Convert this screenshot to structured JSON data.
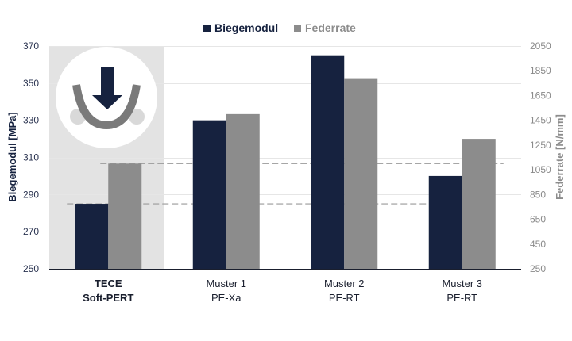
{
  "chart_data": {
    "type": "bar",
    "categories": [
      [
        "TECE",
        "Soft-PERT"
      ],
      [
        "Muster 1",
        "PE-Xa"
      ],
      [
        "Muster 2",
        "PE-RT"
      ],
      [
        "Muster 3",
        "PE-RT"
      ]
    ],
    "highlight_category_index": 0,
    "series": [
      {
        "name": "Biegemodul",
        "axis": "left",
        "color": "#16223f",
        "values": [
          285,
          330,
          365,
          300
        ]
      },
      {
        "name": "Federrate",
        "axis": "right",
        "color": "#8c8c8c",
        "values": [
          1100,
          1500,
          1790,
          1300
        ]
      }
    ],
    "y_left": {
      "label": "Biegemodul [MPa]",
      "min": 250,
      "max": 370,
      "ticks": [
        "250",
        "270",
        "290",
        "310",
        "330",
        "350",
        "370"
      ]
    },
    "y_right": {
      "label": "Federrate [N/mm]",
      "min": 250,
      "max": 2050,
      "ticks": [
        "250",
        "450",
        "650",
        "850",
        "1050",
        "1250",
        "1450",
        "1650",
        "1850",
        "2050"
      ]
    },
    "reference_lines": [
      {
        "axis": "left",
        "value": 285
      },
      {
        "axis": "right",
        "value": 1100
      }
    ],
    "grid": true,
    "legend_position": "top-center",
    "icon": "pipe-bending-arrow-icon"
  }
}
